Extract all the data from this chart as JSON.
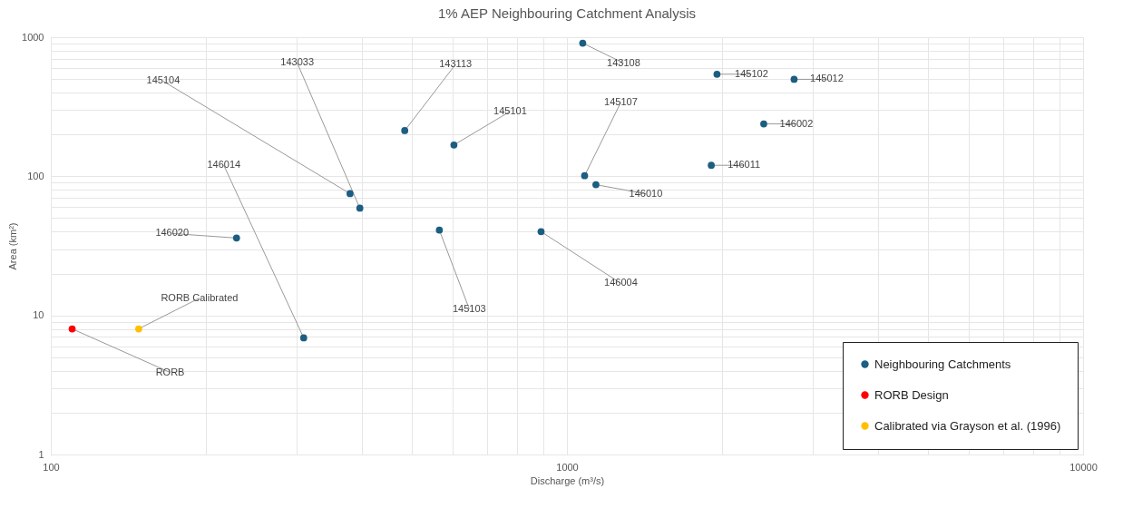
{
  "chart_data": {
    "type": "scatter",
    "title": "1% AEP Neighbouring Catchment Analysis",
    "xlabel": "Discharge (m³/s)",
    "ylabel": "Area (km²)",
    "log": "xy",
    "xlim": [
      100,
      10000
    ],
    "ylim": [
      1,
      1000
    ],
    "xticks": [
      100,
      {
        "value": 200,
        "label": null
      },
      {
        "value": 300,
        "label": null
      },
      {
        "value": 400,
        "label": null
      },
      {
        "value": 500,
        "label": null
      },
      {
        "value": 600,
        "label": null
      },
      {
        "value": 700,
        "label": null
      },
      {
        "value": 800,
        "label": null
      },
      {
        "value": 900,
        "label": null
      },
      1000,
      {
        "value": 2000,
        "label": null
      },
      {
        "value": 3000,
        "label": null
      },
      {
        "value": 4000,
        "label": null
      },
      {
        "value": 5000,
        "label": null
      },
      {
        "value": 6000,
        "label": null
      },
      {
        "value": 7000,
        "label": null
      },
      {
        "value": 8000,
        "label": null
      },
      {
        "value": 9000,
        "label": null
      },
      10000
    ],
    "yticks": [
      1,
      {
        "value": 2,
        "label": null
      },
      {
        "value": 3,
        "label": null
      },
      {
        "value": 4,
        "label": null
      },
      {
        "value": 5,
        "label": null
      },
      {
        "value": 6,
        "label": null
      },
      {
        "value": 7,
        "label": null
      },
      {
        "value": 8,
        "label": null
      },
      {
        "value": 9,
        "label": null
      },
      10,
      {
        "value": 20,
        "label": null
      },
      {
        "value": 30,
        "label": null
      },
      {
        "value": 40,
        "label": null
      },
      {
        "value": 50,
        "label": null
      },
      {
        "value": 60,
        "label": null
      },
      {
        "value": 70,
        "label": null
      },
      {
        "value": 80,
        "label": null
      },
      {
        "value": 90,
        "label": null
      },
      100,
      {
        "value": 200,
        "label": null
      },
      {
        "value": 300,
        "label": null
      },
      {
        "value": 400,
        "label": null
      },
      {
        "value": 500,
        "label": null
      },
      {
        "value": 600,
        "label": null
      },
      {
        "value": 700,
        "label": null
      },
      {
        "value": 800,
        "label": null
      },
      {
        "value": 900,
        "label": null
      },
      1000
    ],
    "grid": true,
    "legend": "bottom right",
    "marker": "circle",
    "series": [
      {
        "name": "Neighbouring Catchments",
        "color": "#1b5e82",
        "x": [
          1073,
          1953,
          2755,
          2406,
          1904,
          1082,
          1138,
          891,
          604,
          485,
          566,
          380,
          397,
          309,
          229
        ],
        "values": [
          906,
          542,
          498,
          238,
          120,
          101,
          87,
          40,
          168,
          213,
          41,
          75,
          59,
          6.9,
          36
        ]
      },
      {
        "name": "RORB Design",
        "color": "#ff0000",
        "x": [
          110
        ],
        "values": [
          8
        ]
      },
      {
        "name": "Calibrated via Grayson et al. (1996)",
        "color": "#ffc000",
        "x": [
          148
        ],
        "values": [
          8
        ]
      }
    ],
    "annotations": [
      {
        "text": "143108",
        "x": 1073,
        "y": 906
      },
      {
        "text": "145102",
        "x": 1953,
        "y": 542
      },
      {
        "text": "145012",
        "x": 2755,
        "y": 498
      },
      {
        "text": "146002",
        "x": 2406,
        "y": 238
      },
      {
        "text": "146011",
        "x": 1904,
        "y": 120
      },
      {
        "text": "145107",
        "x": 1082,
        "y": 101
      },
      {
        "text": "146010",
        "x": 1138,
        "y": 87
      },
      {
        "text": "146004",
        "x": 891,
        "y": 40
      },
      {
        "text": "145101",
        "x": 604,
        "y": 168
      },
      {
        "text": "143113",
        "x": 485,
        "y": 213
      },
      {
        "text": "145103",
        "x": 566,
        "y": 41
      },
      {
        "text": "145104",
        "x": 380,
        "y": 75
      },
      {
        "text": "143033",
        "x": 397,
        "y": 59
      },
      {
        "text": "146014",
        "x": 309,
        "y": 6.9
      },
      {
        "text": "146020",
        "x": 229,
        "y": 36
      },
      {
        "text": "RORB",
        "x": 110,
        "y": 8
      },
      {
        "text": "RORB Calibrated",
        "x": 148,
        "y": 8
      }
    ]
  }
}
